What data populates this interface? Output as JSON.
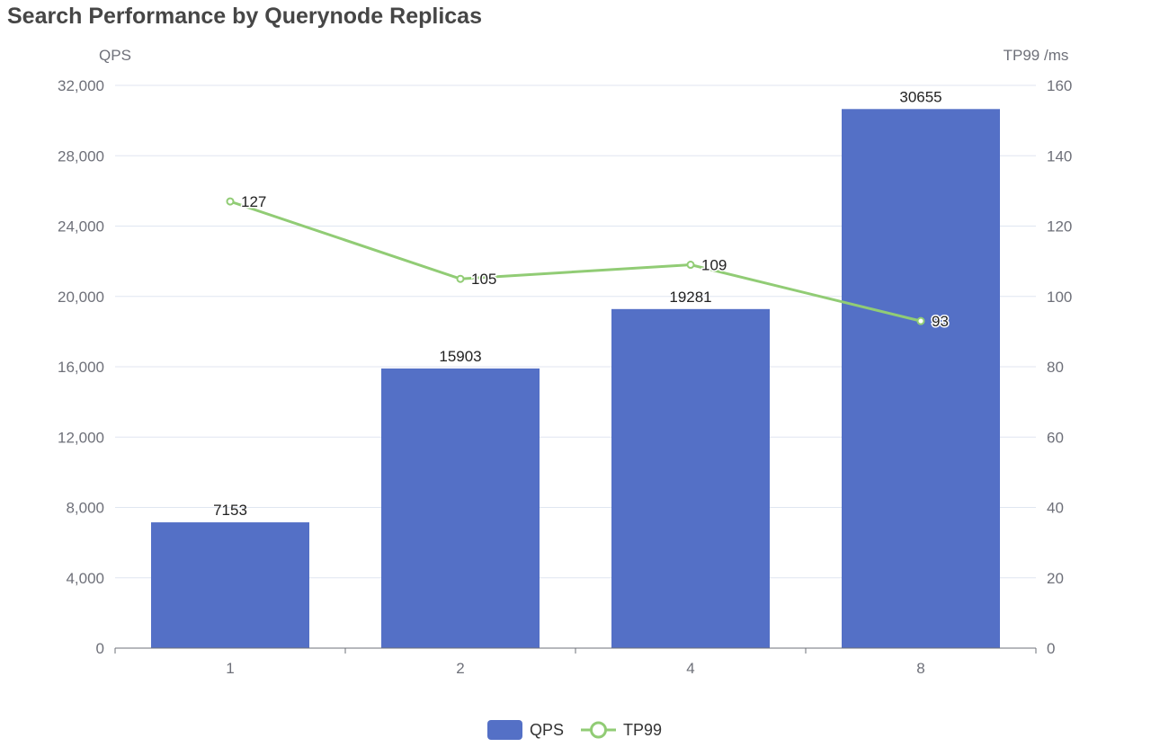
{
  "chart_data": {
    "type": "bar+line",
    "title": "Search Performance by Querynode Replicas",
    "categories": [
      "1",
      "2",
      "4",
      "8"
    ],
    "y_left": {
      "label": "QPS",
      "range": [
        0,
        32000
      ],
      "ticks": [
        "0",
        "4,000",
        "8,000",
        "12,000",
        "16,000",
        "20,000",
        "24,000",
        "28,000",
        "32,000"
      ]
    },
    "y_right": {
      "label": "TP99 /ms",
      "range": [
        0,
        160
      ],
      "ticks": [
        "0",
        "20",
        "40",
        "60",
        "80",
        "100",
        "120",
        "140",
        "160"
      ]
    },
    "grid": true,
    "legend_position": "bottom",
    "series": [
      {
        "name": "QPS",
        "type": "bar",
        "axis": "left",
        "color": "#5470c6",
        "values": [
          7153,
          15903,
          19281,
          30655
        ]
      },
      {
        "name": "TP99",
        "type": "line",
        "axis": "right",
        "color": "#91cc75",
        "values": [
          127,
          105,
          109,
          93
        ]
      }
    ]
  }
}
